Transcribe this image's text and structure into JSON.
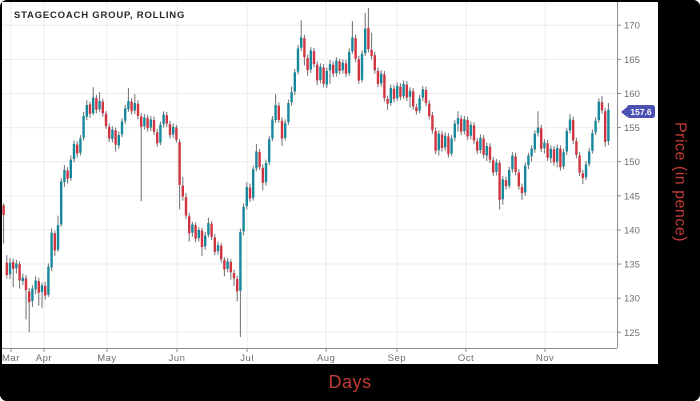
{
  "title": "STAGECOACH GROUP, ROLLING",
  "xlabel": "Days",
  "ylabel": "Price (in pence)",
  "badge": {
    "label": "157.6",
    "color": "#4c52b4"
  },
  "colors": {
    "up": "#15889c",
    "down": "#d2333f",
    "wick": "#6e6f72",
    "grid": "#ececec",
    "axis": "#8c8c8c",
    "tick_label": "#6e6e6e",
    "title": "#26272a",
    "axis_title_red": "#c23b36",
    "panel_bg": "#ffffff",
    "frame_bg": "#000000"
  },
  "chart_data": {
    "type": "candlestick",
    "title": "STAGECOACH GROUP, ROLLING",
    "xlabel": "Days",
    "ylabel": "Price (in pence)",
    "ylim": [
      122.7,
      173.4
    ],
    "y_ticks": [
      125,
      130,
      135,
      140,
      145,
      150,
      155,
      160,
      165,
      170
    ],
    "x_ticks": [
      {
        "label": "Mar",
        "i": 2.3
      },
      {
        "label": "Apr",
        "i": 12.6
      },
      {
        "label": "May",
        "i": 32.3
      },
      {
        "label": "Jun",
        "i": 54.2
      },
      {
        "label": "Jul",
        "i": 76.1
      },
      {
        "label": "Aug",
        "i": 100.8
      },
      {
        "label": "Sep",
        "i": 122.9
      },
      {
        "label": "Oct",
        "i": 144.5
      },
      {
        "label": "Nov",
        "i": 169.2
      }
    ],
    "last_price": 157.6,
    "ohlc": [
      [
        143.6,
        143.9,
        138.0,
        142.2
      ],
      [
        135.2,
        136.3,
        132.9,
        133.4
      ],
      [
        133.5,
        135.9,
        132.8,
        135.2
      ],
      [
        135.3,
        135.8,
        131.6,
        134.3
      ],
      [
        134.4,
        135.6,
        133.6,
        135.1
      ],
      [
        135.0,
        135.4,
        131.4,
        132.6
      ],
      [
        132.5,
        133.6,
        131.9,
        133.0
      ],
      [
        132.9,
        133.4,
        126.9,
        131.2
      ],
      [
        131.0,
        131.5,
        125.0,
        129.4
      ],
      [
        129.6,
        131.9,
        128.7,
        131.4
      ],
      [
        131.3,
        133.2,
        130.6,
        132.6
      ],
      [
        132.5,
        133.0,
        128.9,
        130.8
      ],
      [
        130.9,
        132.3,
        128.6,
        131.9
      ],
      [
        131.8,
        132.4,
        129.8,
        130.4
      ],
      [
        130.5,
        135.1,
        130.2,
        134.6
      ],
      [
        134.5,
        140.2,
        134.0,
        139.6
      ],
      [
        139.5,
        139.9,
        136.2,
        137.0
      ],
      [
        137.1,
        142.1,
        136.8,
        140.7
      ],
      [
        140.8,
        147.6,
        140.5,
        147.1
      ],
      [
        147.0,
        149.5,
        146.3,
        148.8
      ],
      [
        148.7,
        149.2,
        146.8,
        147.5
      ],
      [
        147.6,
        150.9,
        147.2,
        150.3
      ],
      [
        150.4,
        153.1,
        149.9,
        152.6
      ],
      [
        152.5,
        153.0,
        150.6,
        151.2
      ],
      [
        151.3,
        153.9,
        150.9,
        153.4
      ],
      [
        153.5,
        157.3,
        153.1,
        156.7
      ],
      [
        156.6,
        159.0,
        156.1,
        158.3
      ],
      [
        158.4,
        158.8,
        156.4,
        157.0
      ],
      [
        157.1,
        160.9,
        156.8,
        159.4
      ],
      [
        159.3,
        159.8,
        157.1,
        157.6
      ],
      [
        157.7,
        160.2,
        157.3,
        158.9
      ],
      [
        158.8,
        159.2,
        156.6,
        157.1
      ],
      [
        157.0,
        157.4,
        154.8,
        155.2
      ],
      [
        155.1,
        155.6,
        152.9,
        153.4
      ],
      [
        153.3,
        155.2,
        152.8,
        154.7
      ],
      [
        154.6,
        155.0,
        151.5,
        152.5
      ],
      [
        152.4,
        154.4,
        151.9,
        153.9
      ],
      [
        154.0,
        156.4,
        153.6,
        155.9
      ],
      [
        156.0,
        158.3,
        155.5,
        157.8
      ],
      [
        157.7,
        160.8,
        157.3,
        158.9
      ],
      [
        158.8,
        159.3,
        156.9,
        157.4
      ],
      [
        157.5,
        159.9,
        157.0,
        158.6
      ],
      [
        158.5,
        159.0,
        156.2,
        156.7
      ],
      [
        156.6,
        157.1,
        144.2,
        155.1
      ],
      [
        155.2,
        157.0,
        154.7,
        156.5
      ],
      [
        156.4,
        156.9,
        154.4,
        154.9
      ],
      [
        155.0,
        156.7,
        154.5,
        156.2
      ],
      [
        156.1,
        156.6,
        153.9,
        154.4
      ],
      [
        154.3,
        154.8,
        152.2,
        152.7
      ],
      [
        152.8,
        155.9,
        152.4,
        155.4
      ],
      [
        155.5,
        157.4,
        155.0,
        156.9
      ],
      [
        156.8,
        157.3,
        155.1,
        155.6
      ],
      [
        155.5,
        156.0,
        153.4,
        153.9
      ],
      [
        154.0,
        155.6,
        153.5,
        155.1
      ],
      [
        155.0,
        155.4,
        152.8,
        153.2
      ],
      [
        152.9,
        153.3,
        143.0,
        146.6
      ],
      [
        146.5,
        147.8,
        144.3,
        144.9
      ],
      [
        144.8,
        145.4,
        141.6,
        142.1
      ],
      [
        142.0,
        142.5,
        138.3,
        139.5
      ],
      [
        139.6,
        141.2,
        139.0,
        140.8
      ],
      [
        140.7,
        141.1,
        138.2,
        138.7
      ],
      [
        138.8,
        140.4,
        138.3,
        140.0
      ],
      [
        139.9,
        140.3,
        136.2,
        137.5
      ],
      [
        137.6,
        139.7,
        137.1,
        139.2
      ],
      [
        139.3,
        141.8,
        138.9,
        141.0
      ],
      [
        140.9,
        141.3,
        138.5,
        139.0
      ],
      [
        138.9,
        139.4,
        136.3,
        136.8
      ],
      [
        136.9,
        138.3,
        136.4,
        137.8
      ],
      [
        137.7,
        138.1,
        135.2,
        135.7
      ],
      [
        135.6,
        136.0,
        133.2,
        134.2
      ],
      [
        134.3,
        135.9,
        133.8,
        135.4
      ],
      [
        135.3,
        135.7,
        132.7,
        133.8
      ],
      [
        133.7,
        134.2,
        131.8,
        132.9
      ],
      [
        132.8,
        133.3,
        129.5,
        131.0
      ],
      [
        131.1,
        140.2,
        124.3,
        139.7
      ],
      [
        139.8,
        143.9,
        139.2,
        143.4
      ],
      [
        143.5,
        147.0,
        143.0,
        146.3
      ],
      [
        146.2,
        146.8,
        144.1,
        144.6
      ],
      [
        144.7,
        149.4,
        144.3,
        148.9
      ],
      [
        149.0,
        152.6,
        148.6,
        151.5
      ],
      [
        151.4,
        151.9,
        148.8,
        149.2
      ],
      [
        149.1,
        149.6,
        145.8,
        146.9
      ],
      [
        147.0,
        150.3,
        146.5,
        149.8
      ],
      [
        149.9,
        153.8,
        149.5,
        153.3
      ],
      [
        153.4,
        156.7,
        153.0,
        156.2
      ],
      [
        156.1,
        159.9,
        155.7,
        158.3
      ],
      [
        158.2,
        158.7,
        155.7,
        156.1
      ],
      [
        156.0,
        156.5,
        152.3,
        153.4
      ],
      [
        153.5,
        156.2,
        153.1,
        155.7
      ],
      [
        155.8,
        159.1,
        155.4,
        158.6
      ],
      [
        158.7,
        161.0,
        158.2,
        160.2
      ],
      [
        160.3,
        163.6,
        159.8,
        163.1
      ],
      [
        163.2,
        167.1,
        162.8,
        166.6
      ],
      [
        166.7,
        170.7,
        166.2,
        168.2
      ],
      [
        168.1,
        168.6,
        164.1,
        165.3
      ],
      [
        165.2,
        165.7,
        162.6,
        163.4
      ],
      [
        163.5,
        166.8,
        163.0,
        166.3
      ],
      [
        166.2,
        166.7,
        163.8,
        164.3
      ],
      [
        164.2,
        164.7,
        161.2,
        161.9
      ],
      [
        162.0,
        164.4,
        161.5,
        163.9
      ],
      [
        163.8,
        164.3,
        160.9,
        161.4
      ],
      [
        161.3,
        163.8,
        160.8,
        163.3
      ],
      [
        163.4,
        164.9,
        161.4,
        164.3
      ],
      [
        164.2,
        164.7,
        162.4,
        162.9
      ],
      [
        163.0,
        165.3,
        162.5,
        164.8
      ],
      [
        164.7,
        165.1,
        162.8,
        163.3
      ],
      [
        163.4,
        165.0,
        162.9,
        164.5
      ],
      [
        164.4,
        164.9,
        162.4,
        162.9
      ],
      [
        163.0,
        166.6,
        162.6,
        166.1
      ],
      [
        166.2,
        170.6,
        165.8,
        168.2
      ],
      [
        168.1,
        168.6,
        164.6,
        165.1
      ],
      [
        165.0,
        165.5,
        161.4,
        161.9
      ],
      [
        162.0,
        166.3,
        161.6,
        165.8
      ],
      [
        165.9,
        171.8,
        165.5,
        169.5
      ],
      [
        169.6,
        172.5,
        166.0,
        166.5
      ],
      [
        166.4,
        168.9,
        165.0,
        165.5
      ],
      [
        165.6,
        166.1,
        162.9,
        163.4
      ],
      [
        163.3,
        163.8,
        160.9,
        161.4
      ],
      [
        161.5,
        163.4,
        161.0,
        162.9
      ],
      [
        162.8,
        163.3,
        158.8,
        159.3
      ],
      [
        159.2,
        159.7,
        157.6,
        158.5
      ],
      [
        158.6,
        161.3,
        158.2,
        160.8
      ],
      [
        160.7,
        161.2,
        158.7,
        159.2
      ],
      [
        159.3,
        161.6,
        158.9,
        161.1
      ],
      [
        161.0,
        161.5,
        159.0,
        159.5
      ],
      [
        159.6,
        161.9,
        159.2,
        161.4
      ],
      [
        161.3,
        161.8,
        158.9,
        159.4
      ],
      [
        159.5,
        160.9,
        157.9,
        160.4
      ],
      [
        160.3,
        160.8,
        157.6,
        158.1
      ],
      [
        158.0,
        158.5,
        156.9,
        157.4
      ],
      [
        157.5,
        159.8,
        157.1,
        159.3
      ],
      [
        159.4,
        161.1,
        158.9,
        160.6
      ],
      [
        160.5,
        161.0,
        158.1,
        158.6
      ],
      [
        158.5,
        159.0,
        156.2,
        156.7
      ],
      [
        156.8,
        157.3,
        154.1,
        154.6
      ],
      [
        154.5,
        155.0,
        151.1,
        151.6
      ],
      [
        151.7,
        154.6,
        150.9,
        154.1
      ],
      [
        154.0,
        154.5,
        151.5,
        152.0
      ],
      [
        152.1,
        154.3,
        151.6,
        153.8
      ],
      [
        153.7,
        154.2,
        150.6,
        151.1
      ],
      [
        151.2,
        153.9,
        150.8,
        153.4
      ],
      [
        153.5,
        156.1,
        153.0,
        155.6
      ],
      [
        155.5,
        157.4,
        154.4,
        156.4
      ],
      [
        156.3,
        156.8,
        153.9,
        154.4
      ],
      [
        154.5,
        156.7,
        154.0,
        156.2
      ],
      [
        156.1,
        156.6,
        153.2,
        153.7
      ],
      [
        153.8,
        155.9,
        153.3,
        155.4
      ],
      [
        155.3,
        155.8,
        152.6,
        153.1
      ],
      [
        153.0,
        153.5,
        151.1,
        151.6
      ],
      [
        151.7,
        154.0,
        151.2,
        153.5
      ],
      [
        153.4,
        153.9,
        150.5,
        151.0
      ],
      [
        150.9,
        152.8,
        150.1,
        152.3
      ],
      [
        152.2,
        152.7,
        149.8,
        150.3
      ],
      [
        150.2,
        150.7,
        147.9,
        148.4
      ],
      [
        148.5,
        150.4,
        148.0,
        149.9
      ],
      [
        149.8,
        150.2,
        143.0,
        144.4
      ],
      [
        144.5,
        147.9,
        143.7,
        147.4
      ],
      [
        147.3,
        147.8,
        145.9,
        146.4
      ],
      [
        146.5,
        149.3,
        146.1,
        148.8
      ],
      [
        148.9,
        151.4,
        148.4,
        150.9
      ],
      [
        150.8,
        151.3,
        148.0,
        148.5
      ],
      [
        148.4,
        148.9,
        145.9,
        146.4
      ],
      [
        146.3,
        146.8,
        144.4,
        145.4
      ],
      [
        145.5,
        149.9,
        145.0,
        149.4
      ],
      [
        149.5,
        151.3,
        148.9,
        150.9
      ],
      [
        150.8,
        152.4,
        150.0,
        151.9
      ],
      [
        151.8,
        154.6,
        151.3,
        154.1
      ],
      [
        154.2,
        157.4,
        153.7,
        155.0
      ],
      [
        154.9,
        155.4,
        151.4,
        151.9
      ],
      [
        152.0,
        153.3,
        151.2,
        152.8
      ],
      [
        152.7,
        153.2,
        150.1,
        150.6
      ],
      [
        150.5,
        152.4,
        149.8,
        151.9
      ],
      [
        151.8,
        152.3,
        149.4,
        149.9
      ],
      [
        150.0,
        152.5,
        149.2,
        152.0
      ],
      [
        151.9,
        152.4,
        148.7,
        149.2
      ],
      [
        149.3,
        151.9,
        148.9,
        151.4
      ],
      [
        151.5,
        154.9,
        151.0,
        154.5
      ],
      [
        154.6,
        157.0,
        154.1,
        156.2
      ],
      [
        156.1,
        156.6,
        152.6,
        153.1
      ],
      [
        153.0,
        153.5,
        150.5,
        151.0
      ],
      [
        150.9,
        151.4,
        147.9,
        148.4
      ],
      [
        148.3,
        148.8,
        146.7,
        147.6
      ],
      [
        147.7,
        150.1,
        147.3,
        149.6
      ],
      [
        149.7,
        152.0,
        149.3,
        151.5
      ],
      [
        151.6,
        154.7,
        151.2,
        154.2
      ],
      [
        154.3,
        156.5,
        153.9,
        156.0
      ],
      [
        156.1,
        159.3,
        155.7,
        158.8
      ],
      [
        158.7,
        159.6,
        157.0,
        157.5
      ],
      [
        157.4,
        157.9,
        152.2,
        152.9
      ],
      [
        153.0,
        158.6,
        152.4,
        157.6
      ]
    ]
  }
}
